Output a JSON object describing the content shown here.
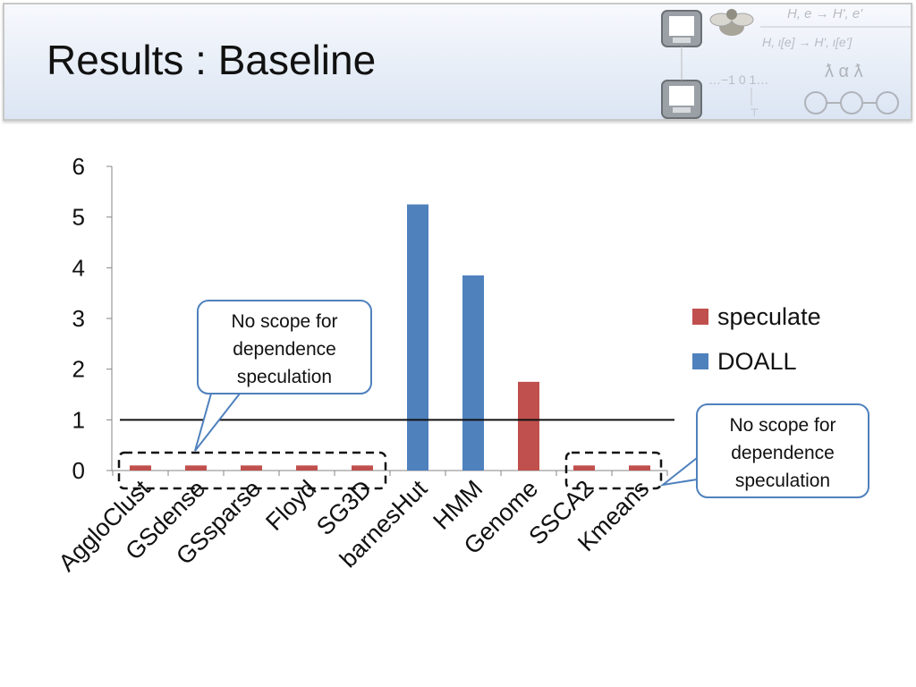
{
  "slide": {
    "title": "Results : Baseline"
  },
  "decor": {
    "icons": [
      "computer-icon",
      "fly-icon",
      "lambda-symbols",
      "state-machine-circles"
    ],
    "formula_top": "H, e → H', e'",
    "formula_bottom": "H, ι[e] → H', ι[e']",
    "lattice": "…−1  0  1…",
    "lattice_bottom": "⊤",
    "symbols": "ƛ α ƛ"
  },
  "chart_data": {
    "type": "bar",
    "categories": [
      "AggloClust",
      "GSdense",
      "GSsparse",
      "Floyd",
      "SG3D",
      "barnesHut",
      "HMM",
      "Genome",
      "SSCA2",
      "Kmeans"
    ],
    "series": [
      {
        "name": "speculate",
        "values": [
          0.1,
          0.1,
          0.1,
          0.1,
          0.1,
          0,
          0,
          1.75,
          0.1,
          0.1
        ]
      },
      {
        "name": "DOALL",
        "values": [
          0,
          0,
          0,
          0,
          0,
          5.25,
          3.85,
          0,
          0,
          0
        ]
      }
    ],
    "ylim": [
      0,
      6
    ],
    "yticks": [
      0,
      1,
      2,
      3,
      4,
      5,
      6
    ],
    "reference_line": 1,
    "legend": "right",
    "grid": false,
    "colors": {
      "speculate": "#c0504d",
      "DOALL": "#4f81bd"
    }
  },
  "annotations": [
    {
      "text_lines": [
        "No scope for",
        "dependence",
        "speculation"
      ],
      "target": "AggloClust–SG3D"
    },
    {
      "text_lines": [
        "No scope for",
        "dependence",
        "speculation"
      ],
      "target": "SSCA2–Kmeans"
    }
  ]
}
